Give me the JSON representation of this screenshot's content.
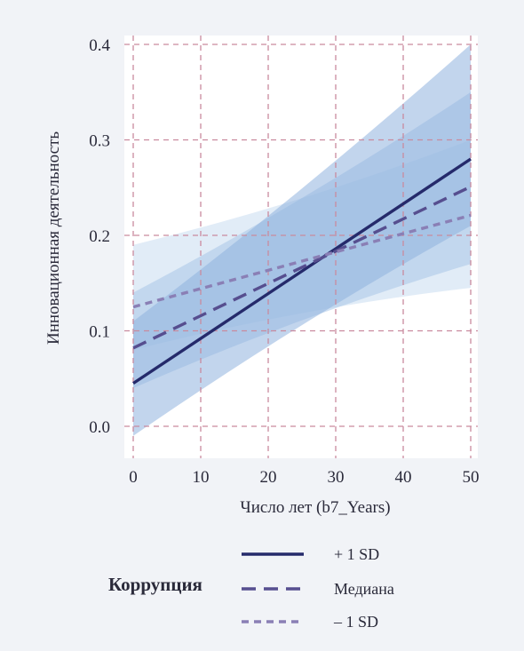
{
  "chart_data": {
    "type": "line",
    "xlabel": "Число лет (b7_Years)",
    "ylabel": "Инновационная деятельность",
    "xlim": [
      0,
      50
    ],
    "ylim": [
      0.0,
      0.4
    ],
    "x_ticks": [
      "0",
      "10",
      "20",
      "30",
      "40",
      "50"
    ],
    "y_ticks": [
      "0.0",
      "0.1",
      "0.2",
      "0.3",
      "0.4"
    ],
    "grid": true,
    "legend_title": "Коррупция",
    "legend_position": "bottom",
    "x": [
      0,
      50
    ],
    "series": [
      {
        "name": "+ 1 SD",
        "values": [
          0.045,
          0.28
        ],
        "style": "solid",
        "color": "#252a6b",
        "ci_lower": [
          -0.01,
          0.21
        ],
        "ci_upper": [
          0.11,
          0.4
        ]
      },
      {
        "name": "Медиана",
        "values": [
          0.082,
          0.251
        ],
        "style": "dashed",
        "color": "#564e8f",
        "ci_lower": [
          0.04,
          0.17
        ],
        "ci_upper": [
          0.14,
          0.35
        ]
      },
      {
        "name": "– 1 SD",
        "values": [
          0.125,
          0.221
        ],
        "style": "dotted",
        "color": "#8a7fb5",
        "ci_lower": [
          0.08,
          0.145
        ],
        "ci_upper": [
          0.19,
          0.3
        ]
      }
    ],
    "colors": {
      "grid": "#c98a9e",
      "ci_band_1": "#8fb2de",
      "ci_band_2": "#a9c6e8",
      "ci_band_3": "#c9dcf1"
    }
  }
}
